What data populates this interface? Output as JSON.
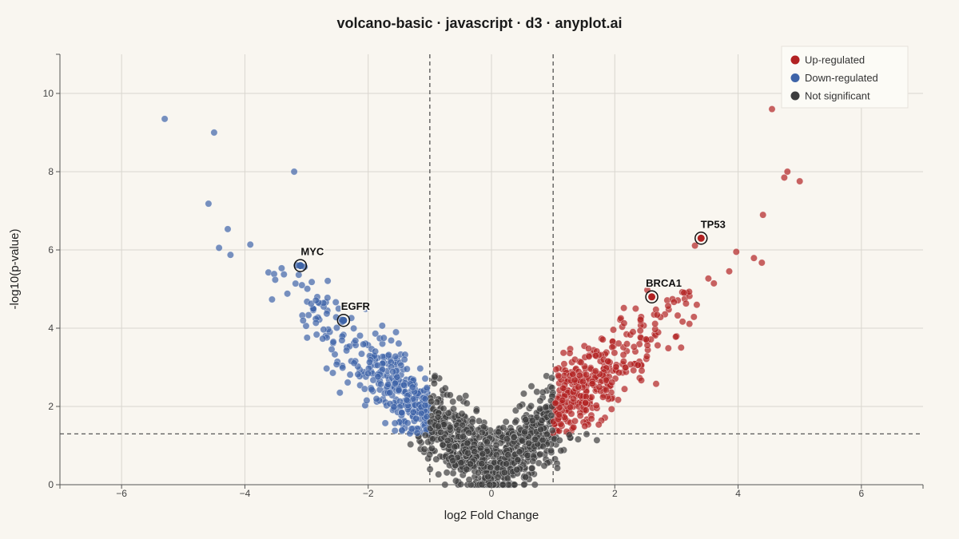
{
  "chart_data": {
    "type": "scatter",
    "title": "volcano-basic · javascript · d3 · anyplot.ai",
    "xlabel": "log2 Fold Change",
    "ylabel": "-log10(p-value)",
    "xlim": [
      -7,
      7
    ],
    "ylim": [
      0,
      11
    ],
    "xticks": [
      -6,
      -4,
      -2,
      0,
      2,
      4,
      6
    ],
    "yticks": [
      0,
      2,
      4,
      6,
      8,
      10
    ],
    "grid": true,
    "legend_position": "top-right",
    "thresholds": {
      "fold_change": [
        -1,
        1
      ],
      "neg_log10_p": 1.3
    },
    "series": [
      {
        "name": "Up-regulated",
        "color": "#b22222"
      },
      {
        "name": "Down-regulated",
        "color": "#3e64a8"
      },
      {
        "name": "Not significant",
        "color": "#3d3d3d"
      }
    ],
    "notable_points": [
      {
        "series": "Down-regulated",
        "x": -5.3,
        "y": 9.35
      },
      {
        "series": "Down-regulated",
        "x": -4.5,
        "y": 9.0
      },
      {
        "series": "Up-regulated",
        "x": 4.55,
        "y": 9.6
      },
      {
        "series": "Up-regulated",
        "x": 4.8,
        "y": 8.0
      },
      {
        "series": "Up-regulated",
        "x": 4.75,
        "y": 7.85
      },
      {
        "series": "Down-regulated",
        "x": -3.2,
        "y": 8.0
      }
    ],
    "highlighted_genes": [
      {
        "label": "MYC",
        "x": -3.1,
        "y": 5.6
      },
      {
        "label": "EGFR",
        "x": -2.4,
        "y": 4.2
      },
      {
        "label": "TP53",
        "x": 3.4,
        "y": 6.3
      },
      {
        "label": "BRCA1",
        "x": 2.6,
        "y": 4.8
      }
    ]
  }
}
